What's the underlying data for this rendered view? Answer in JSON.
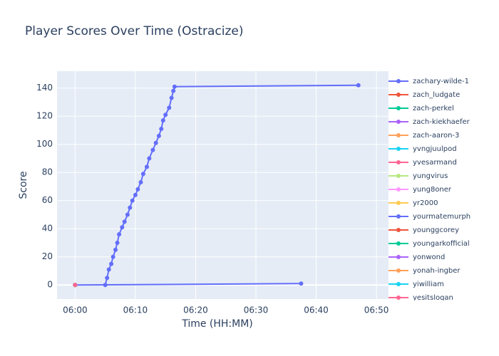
{
  "chart_data": {
    "type": "line",
    "title": "Player Scores Over Time (Ostracize)",
    "x_label": "Time (HH:MM)",
    "y_label": "Score",
    "xlim": [
      -3,
      52
    ],
    "ylim": [
      -10,
      152
    ],
    "xticks": [
      {
        "value": 0,
        "label": "06:00"
      },
      {
        "value": 10,
        "label": "06:10"
      },
      {
        "value": 20,
        "label": "06:20"
      },
      {
        "value": 30,
        "label": "06:30"
      },
      {
        "value": 40,
        "label": "06:40"
      },
      {
        "value": 50,
        "label": "06:50"
      }
    ],
    "yticks": [
      0,
      20,
      40,
      60,
      80,
      100,
      120,
      140
    ],
    "grid": true,
    "series": [
      {
        "name": "zachary-wilde-1",
        "color": "#636efa",
        "x": [
          5.0,
          5.3,
          5.6,
          6.0,
          6.3,
          6.7,
          7.0,
          7.3,
          7.8,
          8.2,
          8.7,
          9.1,
          9.5,
          10.0,
          10.4,
          10.9,
          11.3,
          11.9,
          12.3,
          12.9,
          13.4,
          13.9,
          14.3,
          14.6,
          15.0,
          15.6,
          16.0,
          16.3,
          16.5,
          47.0
        ],
        "values": [
          0,
          5,
          11,
          15,
          20,
          25,
          30,
          36,
          41,
          45,
          50,
          55,
          60,
          64,
          68,
          73,
          79,
          84,
          90,
          96,
          101,
          106,
          111,
          117,
          121,
          126,
          133,
          138,
          141,
          142
        ]
      },
      {
        "name": "zach_ludgate",
        "color": "#EF553B",
        "x": [
          0
        ],
        "values": [
          0
        ]
      },
      {
        "name": "zach-perkel",
        "color": "#00cc96",
        "x": [
          0
        ],
        "values": [
          0
        ]
      },
      {
        "name": "zach-kiekhaefer",
        "color": "#ab63fa",
        "x": [
          0
        ],
        "values": [
          0
        ]
      },
      {
        "name": "zach-aaron-3",
        "color": "#FFA15A",
        "x": [
          0
        ],
        "values": [
          0
        ]
      },
      {
        "name": "yvngjuulpod",
        "color": "#19d3f3",
        "x": [
          0
        ],
        "values": [
          0
        ]
      },
      {
        "name": "yvesarmand",
        "color": "#FF6692",
        "x": [
          0
        ],
        "values": [
          0
        ]
      },
      {
        "name": "yungvirus",
        "color": "#B6E880",
        "x": [
          0
        ],
        "values": [
          0
        ]
      },
      {
        "name": "yung8oner",
        "color": "#FF97FF",
        "x": [
          0
        ],
        "values": [
          0
        ]
      },
      {
        "name": "yr2000",
        "color": "#FECB52",
        "x": [
          0
        ],
        "values": [
          0
        ]
      },
      {
        "name": "yourmatemurph",
        "color": "#636efa",
        "x": [
          0,
          37.5
        ],
        "values": [
          0,
          1
        ]
      },
      {
        "name": "younggcorey",
        "color": "#EF553B",
        "x": [
          0
        ],
        "values": [
          0
        ]
      },
      {
        "name": "youngarkofficial",
        "color": "#00cc96",
        "x": [
          0
        ],
        "values": [
          0
        ]
      },
      {
        "name": "yonwond",
        "color": "#ab63fa",
        "x": [
          0
        ],
        "values": [
          0
        ]
      },
      {
        "name": "yonah-ingber",
        "color": "#FFA15A",
        "x": [
          0
        ],
        "values": [
          0
        ]
      },
      {
        "name": "yiwilliam",
        "color": "#19d3f3",
        "x": [
          0
        ],
        "values": [
          0
        ]
      },
      {
        "name": "yesitslogan",
        "color": "#FF6692",
        "x": [
          0
        ],
        "values": [
          0
        ]
      }
    ]
  }
}
